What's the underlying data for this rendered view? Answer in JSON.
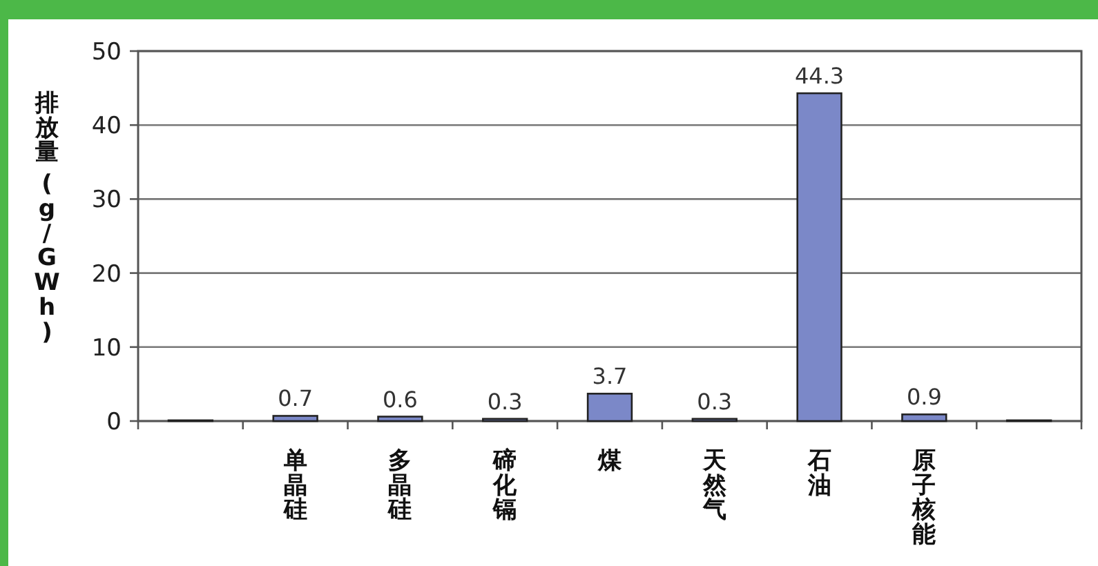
{
  "chart_data": {
    "type": "bar",
    "ylabel": "排放量 (g/GWh)",
    "categories": [
      null,
      "单晶硅",
      "多晶硅",
      "碲化镉",
      "煤",
      "天然气",
      "石油",
      "原子核能",
      null
    ],
    "values": [
      0.1,
      0.7,
      0.6,
      0.3,
      3.7,
      0.3,
      44.3,
      0.9,
      0.1
    ],
    "value_labels": [
      null,
      "0.7",
      "0.6",
      "0.3",
      "3.7",
      "0.3",
      "44.3",
      "0.9",
      null
    ],
    "color": "#7b88c8",
    "ylim": [
      0,
      50
    ],
    "yticks": [
      0,
      10,
      20,
      30,
      40,
      50
    ],
    "grid": "y"
  }
}
